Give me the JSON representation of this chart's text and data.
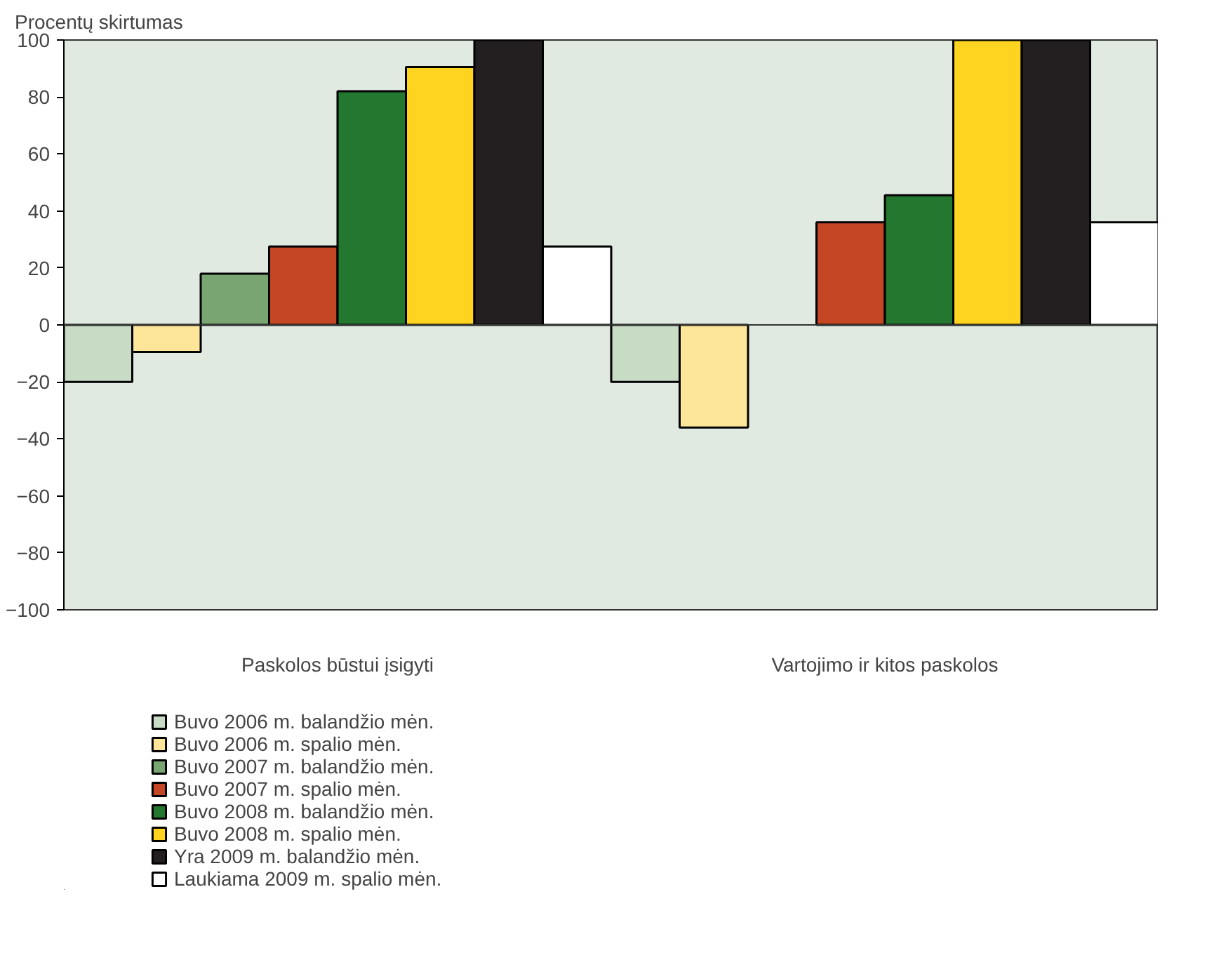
{
  "chart_data": {
    "type": "bar",
    "ylabel": "Procentų skirtumas",
    "categories": [
      "Paskolos būstui įsigyti",
      "Vartojimo ir kitos paskolos"
    ],
    "series": [
      {
        "name": "Buvo 2006 m. balandžio mėn.",
        "color": "#c8dbc5",
        "values": [
          -20,
          -20
        ]
      },
      {
        "name": "Buvo 2006 m. spalio mėn.",
        "color": "#fde59a",
        "values": [
          -9.5,
          -36
        ]
      },
      {
        "name": "Buvo 2007 m. balandžio mėn.",
        "color": "#78a571",
        "values": [
          18,
          null
        ]
      },
      {
        "name": "Buvo 2007 m. spalio mėn.",
        "color": "#c44624",
        "values": [
          27.5,
          36
        ]
      },
      {
        "name": "Buvo 2008 m. balandžio mėn.",
        "color": "#23772f",
        "values": [
          82,
          45.5
        ]
      },
      {
        "name": "Buvo 2008 m. spalio mėn.",
        "color": "#fed420",
        "values": [
          90.5,
          100
        ]
      },
      {
        "name": "Yra 2009 m. balandžio mėn.",
        "color": "#231f20",
        "values": [
          100,
          100
        ]
      },
      {
        "name": "Laukiama 2009 m. spalio mėn.",
        "color": "#ffffff",
        "values": [
          27.5,
          36
        ]
      }
    ],
    "ylim": [
      -100,
      100
    ],
    "yticks": [
      {
        "value": -100,
        "label": "−100"
      },
      {
        "value": -80,
        "label": "−80"
      },
      {
        "value": -60,
        "label": "−60"
      },
      {
        "value": -40,
        "label": "−40"
      },
      {
        "value": -20,
        "label": "−20"
      },
      0,
      20,
      40,
      60,
      80,
      100
    ],
    "ref_lines": [
      {
        "axis": "y",
        "value": 0
      }
    ],
    "grid": false,
    "legend": "bottom left"
  }
}
